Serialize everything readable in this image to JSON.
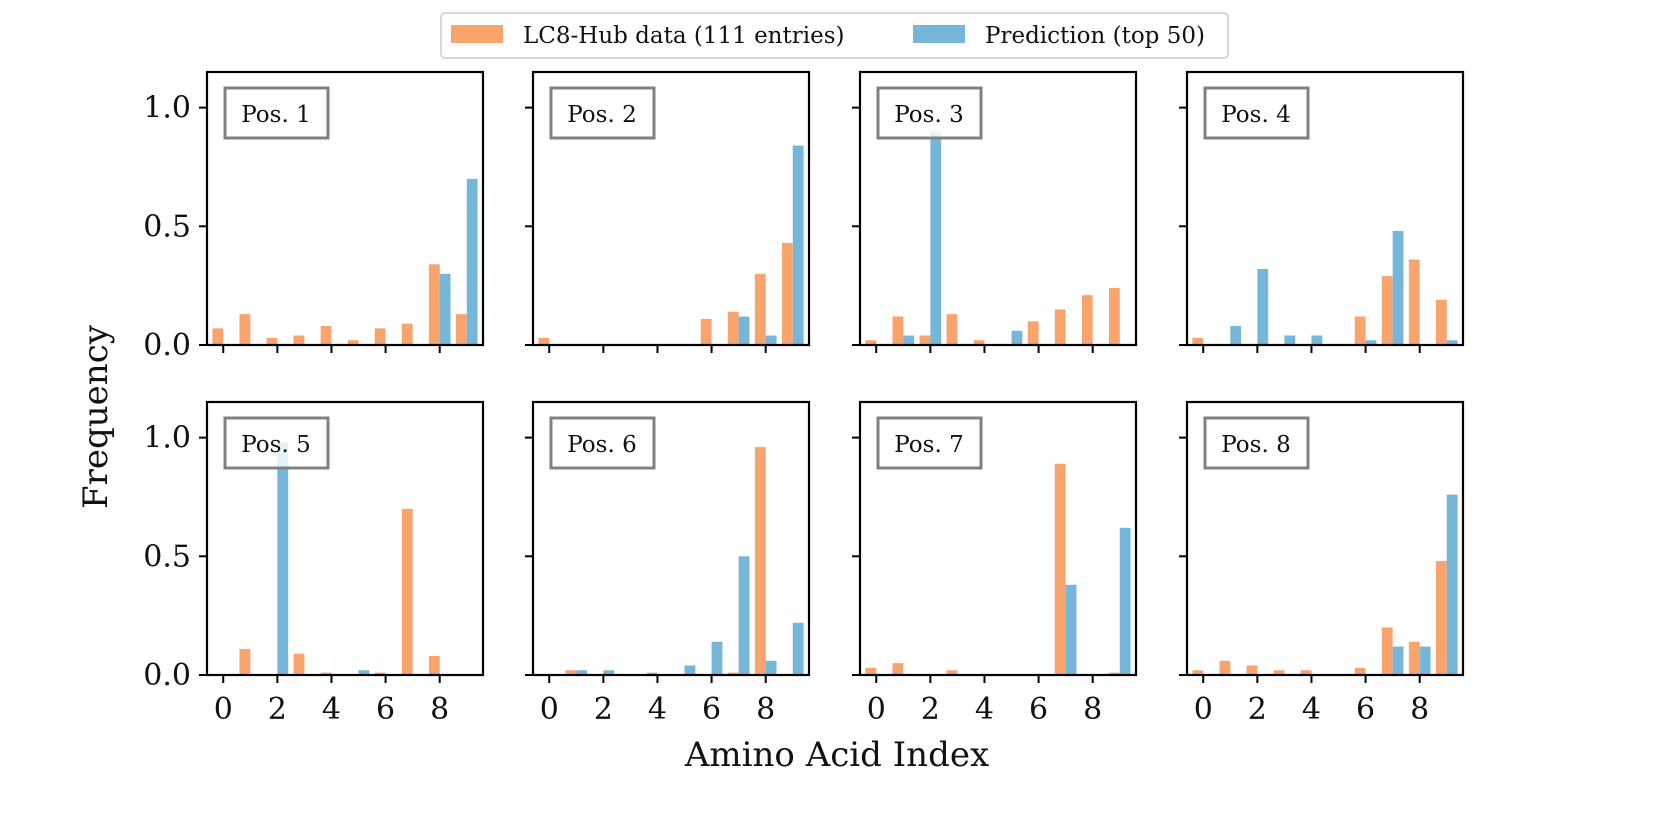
{
  "chart_data": {
    "type": "bar",
    "layout": "grid 2x4, shared axes",
    "xlabel": "Amino Acid Index",
    "ylabel": "Frequency",
    "xlim": [
      -0.6,
      9.6
    ],
    "ylim": [
      0,
      1.15
    ],
    "x_ticks": [
      0,
      2,
      4,
      6,
      8
    ],
    "y_ticks": [
      0.0,
      0.5,
      1.0
    ],
    "y_tick_labels": [
      "0.0",
      "0.5",
      "1.0"
    ],
    "grid": false,
    "legend": {
      "placement": "top-center",
      "entries": [
        {
          "label": "LC8-Hub data (111 entries)",
          "color": "#f9a46c"
        },
        {
          "label": "Prediction (top 50)",
          "color": "#76b7d9"
        }
      ]
    },
    "series_names": [
      "LC8-Hub data (111 entries)",
      "Prediction (top 50)"
    ],
    "series_colors": [
      "#f9a46c",
      "#76b7d9"
    ],
    "categories": [
      0,
      1,
      2,
      3,
      4,
      5,
      6,
      7,
      8,
      9
    ],
    "panels": [
      {
        "label": "Pos. 1",
        "series": [
          {
            "name": "LC8-Hub data (111 entries)",
            "values": [
              0.07,
              0.13,
              0.03,
              0.04,
              0.08,
              0.02,
              0.07,
              0.09,
              0.34,
              0.13
            ]
          },
          {
            "name": "Prediction (top 50)",
            "values": [
              0,
              0,
              0,
              0,
              0,
              0,
              0,
              0,
              0.3,
              0.7
            ]
          }
        ]
      },
      {
        "label": "Pos. 2",
        "series": [
          {
            "name": "LC8-Hub data (111 entries)",
            "values": [
              0.03,
              0,
              0,
              0,
              0,
              0,
              0.11,
              0.14,
              0.3,
              0.43
            ]
          },
          {
            "name": "Prediction (top 50)",
            "values": [
              0,
              0,
              0,
              0,
              0,
              0,
              0,
              0.12,
              0.04,
              0.84
            ]
          }
        ]
      },
      {
        "label": "Pos. 3",
        "series": [
          {
            "name": "LC8-Hub data (111 entries)",
            "values": [
              0.02,
              0.12,
              0.04,
              0.13,
              0.02,
              0,
              0.1,
              0.15,
              0.21,
              0.24
            ]
          },
          {
            "name": "Prediction (top 50)",
            "values": [
              0,
              0.04,
              0.9,
              0,
              0,
              0.06,
              0,
              0,
              0,
              0
            ]
          }
        ]
      },
      {
        "label": "Pos. 4",
        "series": [
          {
            "name": "LC8-Hub data (111 entries)",
            "values": [
              0.03,
              0,
              0,
              0,
              0,
              0,
              0.12,
              0.29,
              0.36,
              0.19
            ]
          },
          {
            "name": "Prediction (top 50)",
            "values": [
              0,
              0.08,
              0.32,
              0.04,
              0.04,
              0,
              0.02,
              0.48,
              0,
              0.02
            ]
          }
        ]
      },
      {
        "label": "Pos. 5",
        "series": [
          {
            "name": "LC8-Hub data (111 entries)",
            "values": [
              0,
              0.11,
              0,
              0.09,
              0.01,
              0,
              0.01,
              0.7,
              0.08,
              0
            ]
          },
          {
            "name": "Prediction (top 50)",
            "values": [
              0,
              0,
              0.98,
              0,
              0,
              0.02,
              0,
              0,
              0,
              0
            ]
          }
        ]
      },
      {
        "label": "Pos. 6",
        "series": [
          {
            "name": "LC8-Hub data (111 entries)",
            "values": [
              0,
              0.02,
              0,
              0,
              0.01,
              0,
              0,
              0.01,
              0.96,
              0
            ]
          },
          {
            "name": "Prediction (top 50)",
            "values": [
              0,
              0.02,
              0.02,
              0,
              0,
              0.04,
              0.14,
              0.5,
              0.06,
              0.22
            ]
          }
        ]
      },
      {
        "label": "Pos. 7",
        "series": [
          {
            "name": "LC8-Hub data (111 entries)",
            "values": [
              0.03,
              0.05,
              0,
              0.02,
              0,
              0,
              0,
              0.89,
              0,
              0.01
            ]
          },
          {
            "name": "Prediction (top 50)",
            "values": [
              0,
              0,
              0,
              0,
              0,
              0,
              0,
              0.38,
              0,
              0.62
            ]
          }
        ]
      },
      {
        "label": "Pos. 8",
        "series": [
          {
            "name": "LC8-Hub data (111 entries)",
            "values": [
              0.02,
              0.06,
              0.04,
              0.02,
              0.02,
              0,
              0.03,
              0.2,
              0.14,
              0.48
            ]
          },
          {
            "name": "Prediction (top 50)",
            "values": [
              0,
              0,
              0,
              0,
              0,
              0,
              0,
              0.12,
              0.12,
              0.76
            ]
          }
        ]
      }
    ]
  }
}
